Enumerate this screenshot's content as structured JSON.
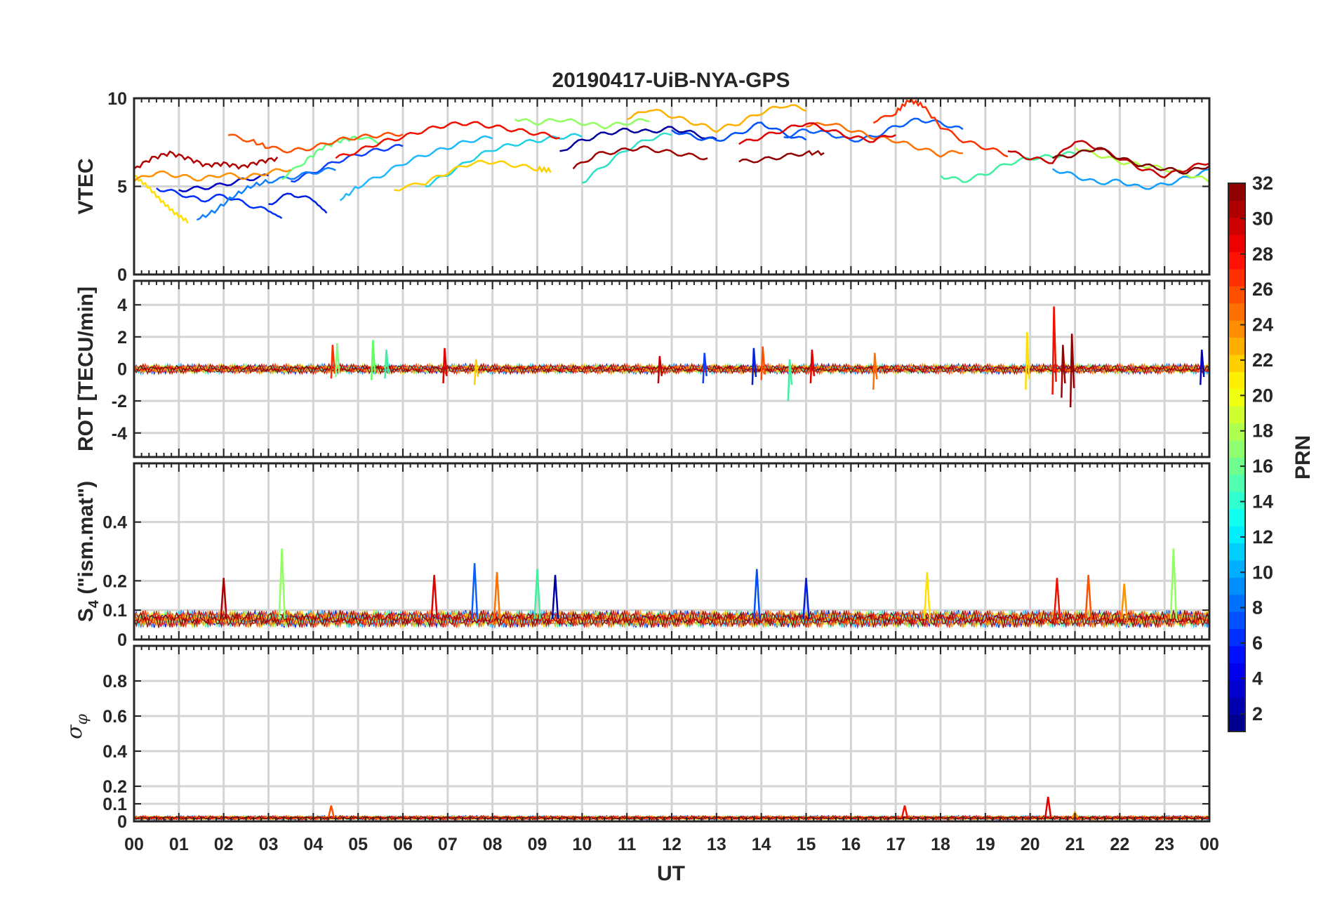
{
  "chart_data": {
    "type": "line",
    "title": "20190417-UiB-NYA-GPS",
    "xlabel": "UT",
    "x_ticks": [
      "00",
      "01",
      "02",
      "03",
      "04",
      "05",
      "06",
      "07",
      "08",
      "09",
      "10",
      "11",
      "12",
      "13",
      "14",
      "15",
      "16",
      "17",
      "18",
      "19",
      "20",
      "21",
      "22",
      "23",
      "00"
    ],
    "xlim": [
      0,
      24
    ],
    "grid": true,
    "colorbar": {
      "label": "PRN",
      "range": [
        1,
        32
      ],
      "ticks": [
        "2",
        "4",
        "6",
        "8",
        "10",
        "12",
        "14",
        "16",
        "18",
        "20",
        "22",
        "24",
        "26",
        "28",
        "30",
        "32"
      ],
      "colormap": "jet"
    },
    "panels": [
      {
        "name": "vtec",
        "ylabel": "VTEC",
        "ylim": [
          0,
          10
        ],
        "yticks": [
          "0",
          "5",
          "10"
        ],
        "series": [
          {
            "color": "#0000C8",
            "x": [
              1.0,
              1.5,
              2.0,
              2.5,
              3.0
            ],
            "y": [
              4.8,
              4.9,
              5.1,
              5.4,
              5.6
            ]
          },
          {
            "color": "#0000A0",
            "x": [
              9.5,
              10.0,
              10.5,
              11.0,
              11.5,
              12.0,
              12.5,
              13.0
            ],
            "y": [
              7.0,
              7.6,
              8.0,
              8.2,
              8.1,
              8.3,
              8.0,
              7.6
            ]
          },
          {
            "color": "#0030FF",
            "x": [
              0.5,
              1.0,
              1.5,
              2.0,
              2.5,
              3.0,
              3.3
            ],
            "y": [
              4.9,
              4.6,
              4.2,
              4.5,
              4.0,
              3.6,
              3.2
            ]
          },
          {
            "color": "#0020E0",
            "x": [
              3.0,
              3.5,
              4.0,
              4.3
            ],
            "y": [
              4.0,
              4.6,
              4.2,
              3.5
            ]
          },
          {
            "color": "#1040FF",
            "x": [
              3.5,
              4.0,
              4.5,
              5.0,
              5.5,
              6.0
            ],
            "y": [
              5.3,
              5.8,
              6.4,
              6.8,
              7.1,
              7.3
            ]
          },
          {
            "color": "#0050FF",
            "x": [
              12.0,
              12.5,
              13.0,
              13.5,
              14.0,
              14.5,
              15.0
            ],
            "y": [
              8.2,
              7.8,
              7.6,
              8.0,
              8.6,
              8.0,
              7.6
            ]
          },
          {
            "color": "#0A60FF",
            "x": [
              14.5,
              15.0,
              15.5,
              16.0,
              16.5,
              17.0,
              17.5,
              18.0,
              18.5
            ],
            "y": [
              7.8,
              8.2,
              8.0,
              7.6,
              7.8,
              8.4,
              8.8,
              8.6,
              8.2
            ]
          },
          {
            "color": "#1080FF",
            "x": [
              1.4,
              1.8,
              2.2,
              2.6,
              3.0,
              3.5,
              4.0,
              4.5
            ],
            "y": [
              3.1,
              3.6,
              4.4,
              5.0,
              5.3,
              5.5,
              5.8,
              6.0
            ]
          },
          {
            "color": "#10A0FF",
            "x": [
              20.5,
              21.0,
              21.5,
              22.0,
              22.5,
              23.0,
              23.5,
              24.0
            ],
            "y": [
              6.0,
              5.6,
              5.2,
              5.3,
              4.9,
              5.1,
              5.5,
              5.9
            ]
          },
          {
            "color": "#20B8FF",
            "x": [
              4.6,
              5.0,
              5.5,
              6.0,
              6.5,
              7.0,
              7.5,
              8.0
            ],
            "y": [
              4.2,
              5.0,
              5.6,
              6.3,
              6.8,
              7.2,
              7.6,
              7.8
            ]
          },
          {
            "color": "#20D0E8",
            "x": [
              6.5,
              7.0,
              7.5,
              8.0,
              8.5,
              9.0,
              9.5,
              10.0
            ],
            "y": [
              5.0,
              5.7,
              6.5,
              7.1,
              7.4,
              7.6,
              7.8,
              7.9
            ]
          },
          {
            "color": "#30E0C8",
            "x": [
              10.0,
              10.5,
              11.0,
              11.5,
              12.0
            ],
            "y": [
              5.2,
              6.2,
              7.1,
              7.7,
              8.0
            ]
          },
          {
            "color": "#40F0A0",
            "x": [
              18.0,
              18.5,
              19.0,
              19.5,
              20.0,
              20.5,
              21.0
            ],
            "y": [
              5.6,
              5.3,
              5.7,
              6.3,
              6.6,
              6.7,
              6.9
            ]
          },
          {
            "color": "#60FF80",
            "x": [
              3.3,
              3.8,
              4.2,
              4.6,
              5.0,
              5.5
            ],
            "y": [
              5.4,
              6.4,
              7.2,
              7.6,
              7.8,
              7.5
            ]
          },
          {
            "color": "#90FF60",
            "x": [
              8.5,
              9.0,
              9.5,
              10.0,
              10.5,
              11.0,
              11.5
            ],
            "y": [
              8.8,
              8.6,
              8.8,
              8.6,
              8.4,
              8.6,
              8.8
            ]
          },
          {
            "color": "#B0FF40",
            "x": [
              21.0,
              21.5,
              22.0,
              22.5,
              23.0,
              23.5,
              24.0
            ],
            "y": [
              7.2,
              6.8,
              6.4,
              6.2,
              6.0,
              5.7,
              5.3
            ]
          },
          {
            "color": "#FFE000",
            "x": [
              0.0,
              0.3,
              0.6,
              0.9,
              1.2
            ],
            "y": [
              5.6,
              5.0,
              4.2,
              3.5,
              3.0
            ]
          },
          {
            "color": "#FFD000",
            "x": [
              5.8,
              6.5,
              7.0,
              7.5,
              8.0,
              8.5,
              9.0,
              9.3
            ],
            "y": [
              4.8,
              5.2,
              5.8,
              6.3,
              6.4,
              6.2,
              6.0,
              5.9
            ]
          },
          {
            "color": "#FFB000",
            "x": [
              11.0,
              11.5,
              12.0,
              12.5,
              13.0,
              13.5,
              14.0,
              14.5,
              15.0
            ],
            "y": [
              8.8,
              9.4,
              9.0,
              8.6,
              8.2,
              8.6,
              9.2,
              9.6,
              9.4
            ]
          },
          {
            "color": "#FF9000",
            "x": [
              0.0,
              0.5,
              1.0,
              1.5,
              2.0,
              2.5,
              3.0,
              3.5
            ],
            "y": [
              5.3,
              5.8,
              5.6,
              5.4,
              5.7,
              5.5,
              5.8,
              6.0
            ]
          },
          {
            "color": "#FF7000",
            "x": [
              15.0,
              15.5,
              16.0,
              16.5,
              17.0,
              17.5,
              18.0,
              18.5
            ],
            "y": [
              8.4,
              8.6,
              8.2,
              7.8,
              7.6,
              7.2,
              6.8,
              7.0
            ]
          },
          {
            "color": "#FF5000",
            "x": [
              2.1,
              2.6,
              3.0,
              3.5,
              4.0,
              4.5,
              5.0,
              5.5,
              6.0
            ],
            "y": [
              7.9,
              7.6,
              7.2,
              7.0,
              7.2,
              7.6,
              7.8,
              7.9,
              8.0
            ]
          },
          {
            "color": "#FF3000",
            "x": [
              16.5,
              17.0,
              17.3,
              17.6,
              18.0,
              18.5,
              19.0,
              19.5
            ],
            "y": [
              8.6,
              9.2,
              9.9,
              9.6,
              8.4,
              7.6,
              7.2,
              6.8
            ]
          },
          {
            "color": "#F01000",
            "x": [
              4.5,
              5.0,
              5.5,
              6.0,
              6.5,
              7.0,
              7.5,
              8.0,
              8.5,
              9.0,
              9.5
            ],
            "y": [
              6.6,
              7.0,
              7.5,
              7.8,
              8.2,
              8.5,
              8.6,
              8.4,
              8.2,
              8.0,
              7.8
            ]
          },
          {
            "color": "#E00000",
            "x": [
              13.5,
              14.0,
              14.5,
              15.0,
              15.5,
              16.0,
              16.5,
              17.0
            ],
            "y": [
              7.4,
              7.8,
              8.2,
              8.6,
              8.2,
              7.8,
              7.6,
              8.0
            ]
          },
          {
            "color": "#C80000",
            "x": [
              19.5,
              20.0,
              20.5,
              21.0,
              21.5,
              22.0,
              22.5,
              23.0,
              23.5,
              24.0
            ],
            "y": [
              7.0,
              6.6,
              6.4,
              7.6,
              7.2,
              6.6,
              6.0,
              5.6,
              6.0,
              6.4
            ]
          },
          {
            "color": "#B00000",
            "x": [
              0.0,
              0.4,
              0.8,
              1.2,
              1.6,
              2.0,
              2.4,
              2.8,
              3.2
            ],
            "y": [
              6.0,
              6.6,
              6.9,
              6.6,
              6.2,
              6.3,
              6.1,
              6.4,
              6.6
            ]
          },
          {
            "color": "#A00000",
            "x": [
              9.8,
              10.3,
              10.8,
              11.3,
              11.8,
              12.3,
              12.8
            ],
            "y": [
              6.0,
              6.8,
              7.0,
              7.2,
              7.0,
              6.8,
              6.6
            ]
          },
          {
            "color": "#900000",
            "x": [
              13.5,
              14.0,
              14.5,
              15.0,
              15.4
            ],
            "y": [
              6.4,
              6.5,
              6.7,
              6.9,
              6.9
            ]
          },
          {
            "color": "#800000",
            "x": [
              20.5,
              21.0,
              21.5,
              22.0,
              22.5,
              23.0,
              23.5,
              24.0
            ],
            "y": [
              6.6,
              6.8,
              7.2,
              6.6,
              6.2,
              6.0,
              5.8,
              6.2
            ]
          }
        ]
      },
      {
        "name": "rot",
        "ylabel": "ROT [TECU/min]",
        "ylim": [
          -5.5,
          5.5
        ],
        "yticks": [
          "-4",
          "-2",
          "0",
          "2",
          "4"
        ],
        "spikes": [
          {
            "color": "#FF3000",
            "x": 4.4,
            "y": [
              1.5,
              -0.6
            ]
          },
          {
            "color": "#80FF80",
            "x": 4.5,
            "y": [
              1.6,
              -0.5
            ]
          },
          {
            "color": "#60FF60",
            "x": 5.3,
            "y": [
              1.8,
              -0.7
            ]
          },
          {
            "color": "#40F0A0",
            "x": 5.6,
            "y": [
              1.2,
              -0.6
            ]
          },
          {
            "color": "#E00000",
            "x": 6.9,
            "y": [
              1.3,
              -0.9
            ]
          },
          {
            "color": "#FFD000",
            "x": 7.6,
            "y": [
              0.6,
              -1.0
            ]
          },
          {
            "color": "#1040FF",
            "x": 12.7,
            "y": [
              1.0,
              -0.9
            ]
          },
          {
            "color": "#C80000",
            "x": 11.7,
            "y": [
              0.8,
              -0.9
            ]
          },
          {
            "color": "#0020E0",
            "x": 13.8,
            "y": [
              1.3,
              -1.0
            ]
          },
          {
            "color": "#FF5000",
            "x": 14.0,
            "y": [
              1.4,
              -0.7
            ]
          },
          {
            "color": "#40F0A0",
            "x": 14.6,
            "y": [
              0.6,
              -2.0
            ]
          },
          {
            "color": "#E00000",
            "x": 15.1,
            "y": [
              1.2,
              -0.9
            ]
          },
          {
            "color": "#FF7000",
            "x": 16.5,
            "y": [
              1.0,
              -1.3
            ]
          },
          {
            "color": "#FFE000",
            "x": 19.9,
            "y": [
              2.3,
              -1.3
            ]
          },
          {
            "color": "#F01000",
            "x": 20.5,
            "y": [
              3.9,
              -1.6
            ]
          },
          {
            "color": "#A00000",
            "x": 20.7,
            "y": [
              1.5,
              -1.8
            ]
          },
          {
            "color": "#900000",
            "x": 20.9,
            "y": [
              2.2,
              -2.4
            ]
          },
          {
            "color": "#0000C8",
            "x": 23.8,
            "y": [
              1.2,
              -1.0
            ]
          }
        ]
      },
      {
        "name": "s4",
        "ylabel": "S4 (\"ism.mat\")",
        "ylabel_main": "S",
        "ylabel_sub": "4",
        "ylabel_rest": " (\"ism.mat\")",
        "ylim": [
          0,
          0.6
        ],
        "yticks": [
          "0",
          "0.1",
          "0.2",
          "0.4"
        ],
        "spikes": [
          {
            "color": "#90FF60",
            "x": 3.3,
            "y": 0.31
          },
          {
            "color": "#B00000",
            "x": 2.0,
            "y": 0.21
          },
          {
            "color": "#E00000",
            "x": 6.7,
            "y": 0.22
          },
          {
            "color": "#0A60FF",
            "x": 7.6,
            "y": 0.26
          },
          {
            "color": "#FF7000",
            "x": 8.1,
            "y": 0.23
          },
          {
            "color": "#40F0A0",
            "x": 9.0,
            "y": 0.24
          },
          {
            "color": "#0000A0",
            "x": 9.4,
            "y": 0.22
          },
          {
            "color": "#0050FF",
            "x": 13.9,
            "y": 0.24
          },
          {
            "color": "#0020E0",
            "x": 15.0,
            "y": 0.21
          },
          {
            "color": "#FFE000",
            "x": 17.7,
            "y": 0.23
          },
          {
            "color": "#F01000",
            "x": 20.6,
            "y": 0.21
          },
          {
            "color": "#FF5000",
            "x": 21.3,
            "y": 0.22
          },
          {
            "color": "#90FF60",
            "x": 23.2,
            "y": 0.31
          },
          {
            "color": "#FF9000",
            "x": 22.1,
            "y": 0.19
          }
        ]
      },
      {
        "name": "sigma",
        "ylabel": "σ φ",
        "ylabel_main": "σ",
        "ylabel_sub": "φ",
        "ylim": [
          0,
          1.0
        ],
        "yticks": [
          "0",
          "0.1",
          "0.2",
          "0.4",
          "0.6",
          "0.8"
        ],
        "spikes": [
          {
            "color": "#FF5000",
            "x": 4.4,
            "y": 0.09
          },
          {
            "color": "#F01000",
            "x": 17.2,
            "y": 0.09
          },
          {
            "color": "#E00000",
            "x": 20.4,
            "y": 0.14
          },
          {
            "color": "#FF9000",
            "x": 21.0,
            "y": 0.05
          }
        ]
      }
    ]
  }
}
